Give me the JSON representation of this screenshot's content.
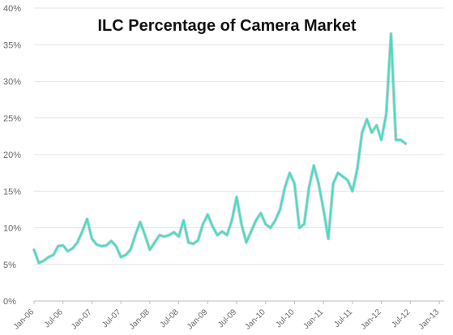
{
  "chart_data": {
    "type": "line",
    "title": "ILC Percentage of Camera Market",
    "xlabel": "",
    "ylabel": "",
    "ylim": [
      0,
      40
    ],
    "y_ticks": [
      "0%",
      "5%",
      "10%",
      "15%",
      "20%",
      "25%",
      "30%",
      "35%",
      "40%"
    ],
    "x_tick_labels": [
      "Jan-06",
      "Jul-06",
      "Jan-07",
      "Jul-07",
      "Jan-08",
      "Jul-08",
      "Jan-09",
      "Jul-09",
      "Jan-10",
      "Jul-10",
      "Jan-11",
      "Jul-11",
      "Jan-12",
      "Jul-12",
      "Jan-13"
    ],
    "x_tick_positions": [
      0,
      6,
      12,
      18,
      24,
      30,
      36,
      42,
      48,
      54,
      60,
      66,
      72,
      78,
      84
    ],
    "x_range": [
      0,
      85
    ],
    "grid": "horizontal",
    "legend": "none",
    "line_color": "#3ee0c4",
    "line_shadow_color": "#9e9e9e",
    "series": [
      {
        "values": [
          7.0,
          5.2,
          5.5,
          6.0,
          6.3,
          7.5,
          7.6,
          6.8,
          7.2,
          8.0,
          9.5,
          11.2,
          8.5,
          7.7,
          7.5,
          7.6,
          8.2,
          7.5,
          6.0,
          6.3,
          7.0,
          9.0,
          10.8,
          9.0,
          7.0,
          8.0,
          9.0,
          8.8,
          9.0,
          9.4,
          8.8,
          11.0,
          8.0,
          7.8,
          8.3,
          10.5,
          11.8,
          10.2,
          9.0,
          9.5,
          9.0,
          11.0,
          14.2,
          10.5,
          8.0,
          9.5,
          11.0,
          12.0,
          10.5,
          10.0,
          11.0,
          12.5,
          15.5,
          17.5,
          16.0,
          10.0,
          10.5,
          15.5,
          18.5,
          16.0,
          12.5,
          8.5,
          16.0,
          17.5,
          17.0,
          16.5,
          15.0,
          18.0,
          23.0,
          24.8,
          23.0,
          24.0,
          22.0,
          25.5,
          36.5,
          22.0,
          22.0,
          21.5
        ]
      }
    ]
  }
}
